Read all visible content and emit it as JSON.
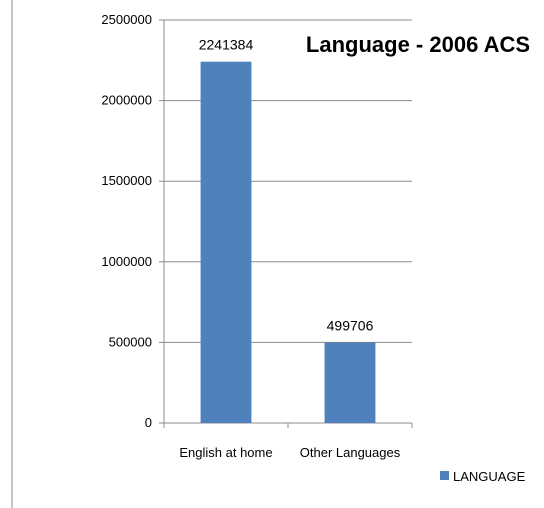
{
  "chart_data": {
    "type": "bar",
    "title": "Language - 2006 ACS",
    "categories": [
      "English at home",
      "Other Languages"
    ],
    "series": [
      {
        "name": "LANGUAGE",
        "values": [
          2241384,
          499706
        ],
        "color": "#4f81bd"
      }
    ],
    "ylim": [
      0,
      2500000
    ],
    "yticks": [
      "0",
      "500000",
      "1000000",
      "1500000",
      "2000000",
      "2500000"
    ],
    "data_labels": [
      "2241384",
      "499706"
    ],
    "grid": true,
    "legend": "bottom-right",
    "xlabel": "",
    "ylabel": ""
  }
}
